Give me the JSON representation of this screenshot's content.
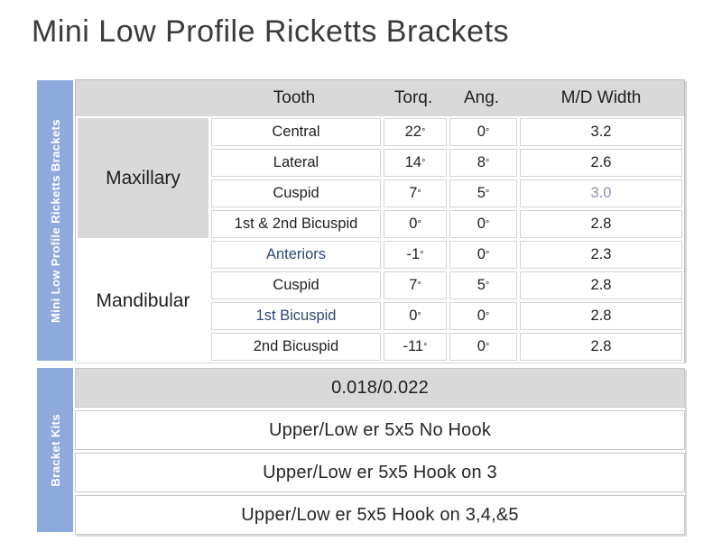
{
  "title": "Mini Low Profile Ricketts Brackets",
  "colors": {
    "sidebar_blue": "#8EA9DB",
    "header_gray": "#D9D9D9",
    "border_gray": "#C9C9C9",
    "text_dark": "#1F1F1F",
    "text_navy": "#2E4875",
    "text_muted_blue": "#8496B0"
  },
  "main_table": {
    "sidebar_label": "Mini Low Profile Ricketts Brackets",
    "headers": [
      "Tooth",
      "Torq.",
      "Ang.",
      "M/D Width"
    ],
    "groups": [
      {
        "name": "Maxillary",
        "rows": [
          {
            "tooth": "Central",
            "torq": "22",
            "ang": "0",
            "width": "3.2"
          },
          {
            "tooth": "Lateral",
            "torq": "14",
            "ang": "8",
            "width": "2.6"
          },
          {
            "tooth": "Cuspid",
            "torq": "7",
            "ang": "5",
            "width": "3.0",
            "width_style": "muted"
          },
          {
            "tooth": "1st & 2nd Bicuspid",
            "torq": "0",
            "ang": "0",
            "width": "2.8"
          }
        ]
      },
      {
        "name": "Mandibular",
        "rows": [
          {
            "tooth": "Anteriors",
            "torq": "-1",
            "ang": "0",
            "width": "2.3",
            "tooth_style": "navy"
          },
          {
            "tooth": "Cuspid",
            "torq": "7",
            "ang": "5",
            "width": "2.8"
          },
          {
            "tooth": "1st Bicuspid",
            "torq": "0",
            "ang": "0",
            "width": "2.8",
            "tooth_style": "navy"
          },
          {
            "tooth": "2nd Bicuspid",
            "torq": "-11",
            "ang": "0",
            "width": "2.8"
          }
        ]
      }
    ],
    "degree_symbol": "°"
  },
  "kits_table": {
    "sidebar_label": "Bracket Kits",
    "size_row": "0.018/0.022",
    "rows": [
      "Upper/Low er 5x5 No Hook",
      "Upper/Low er 5x5 Hook on 3",
      "Upper/Low er 5x5 Hook on 3,4,&5"
    ]
  }
}
